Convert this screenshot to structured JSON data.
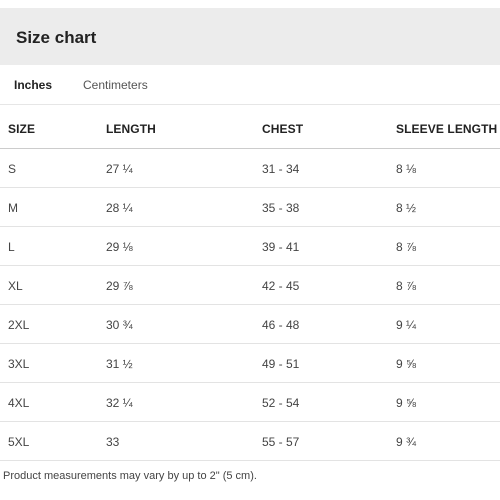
{
  "header": {
    "title": "Size chart"
  },
  "tabs": [
    {
      "label": "Inches",
      "active": true
    },
    {
      "label": "Centimeters",
      "active": false
    }
  ],
  "table": {
    "columns": [
      "SIZE",
      "LENGTH",
      "CHEST",
      "SLEEVE LENGTH"
    ],
    "rows": [
      [
        "S",
        "27 ¼",
        "31 - 34",
        "8 ⅛"
      ],
      [
        "M",
        "28 ¼",
        "35 - 38",
        "8 ½"
      ],
      [
        "L",
        "29 ⅛",
        "39 - 41",
        "8 ⅞"
      ],
      [
        "XL",
        "29 ⅞",
        "42 - 45",
        "8 ⅞"
      ],
      [
        "2XL",
        "30 ¾",
        "46 - 48",
        "9 ¼"
      ],
      [
        "3XL",
        "31 ½",
        "49 - 51",
        "9 ⅝"
      ],
      [
        "4XL",
        "32 ¼",
        "52 - 54",
        "9 ⅝"
      ],
      [
        "5XL",
        "33",
        "55 - 57",
        "9 ¾"
      ]
    ]
  },
  "footnote": "Product measurements may vary by up to 2\" (5 cm).",
  "colors": {
    "header_background": "#ececec",
    "divider": "#e3e3e3",
    "text": "#444444"
  }
}
